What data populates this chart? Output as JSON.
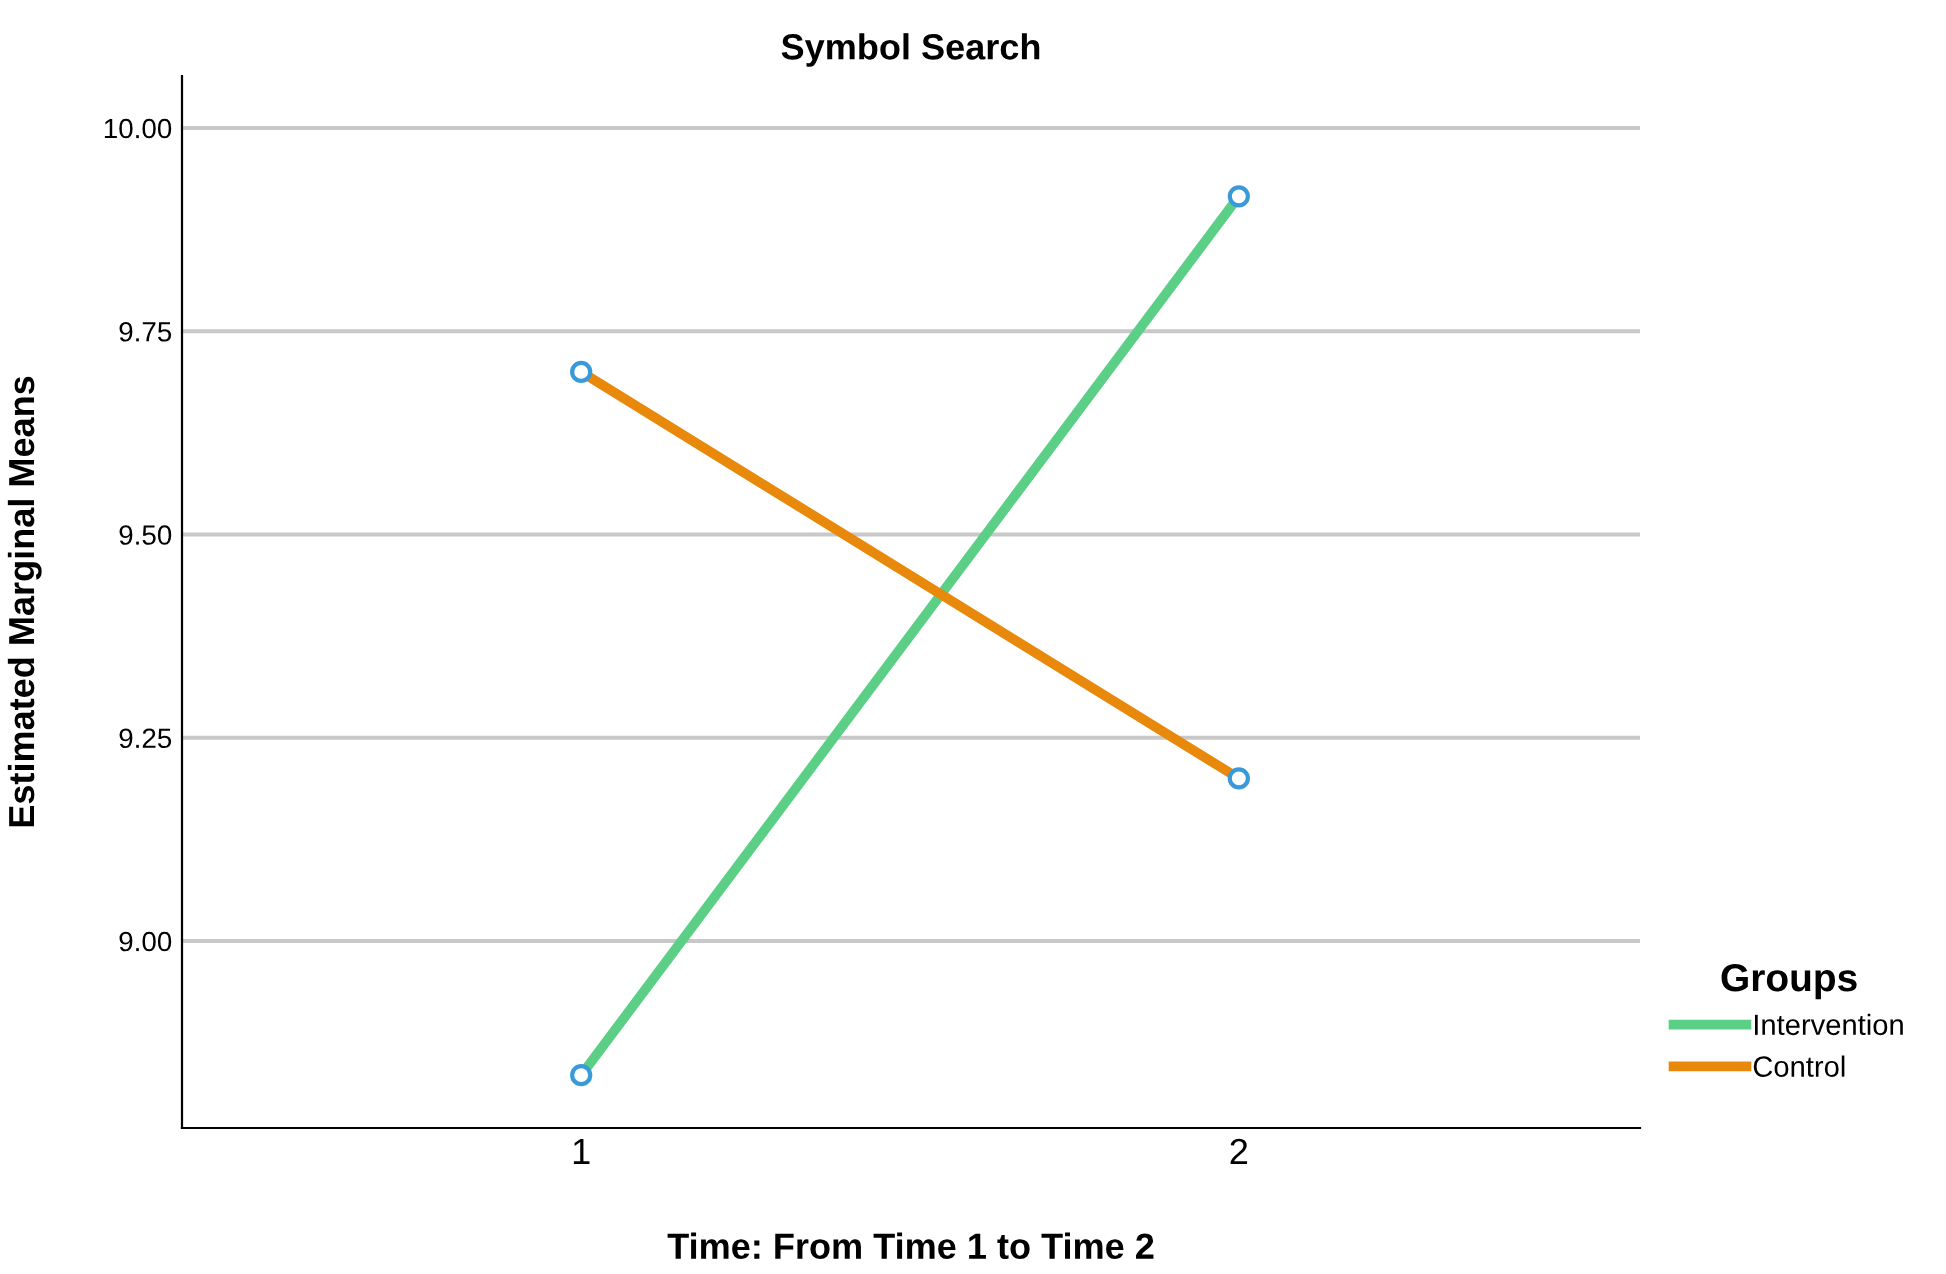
{
  "chart_data": {
    "type": "line",
    "title": "Symbol Search",
    "xlabel": "Time: From Time 1 to Time 2",
    "ylabel": "Estimated Marginal Means",
    "legend_title": "Groups",
    "categories": [
      "1",
      "2"
    ],
    "series": [
      {
        "name": "Intervention",
        "color": "#5ccf86",
        "values": [
          8.835,
          9.916
        ]
      },
      {
        "name": "Control",
        "color": "#e8890c",
        "values": [
          9.7,
          9.2
        ]
      }
    ],
    "ylim": [
      8.77,
      10.064
    ],
    "yticks": [
      {
        "value": 9.0,
        "label": "9.00"
      },
      {
        "value": 9.25,
        "label": "9.25"
      },
      {
        "value": 9.5,
        "label": "9.50"
      },
      {
        "value": 9.75,
        "label": "9.75"
      },
      {
        "value": 10.0,
        "label": "10.00"
      }
    ],
    "grid": "y",
    "legend": "right",
    "marker": "circle",
    "line_style": "solid"
  }
}
